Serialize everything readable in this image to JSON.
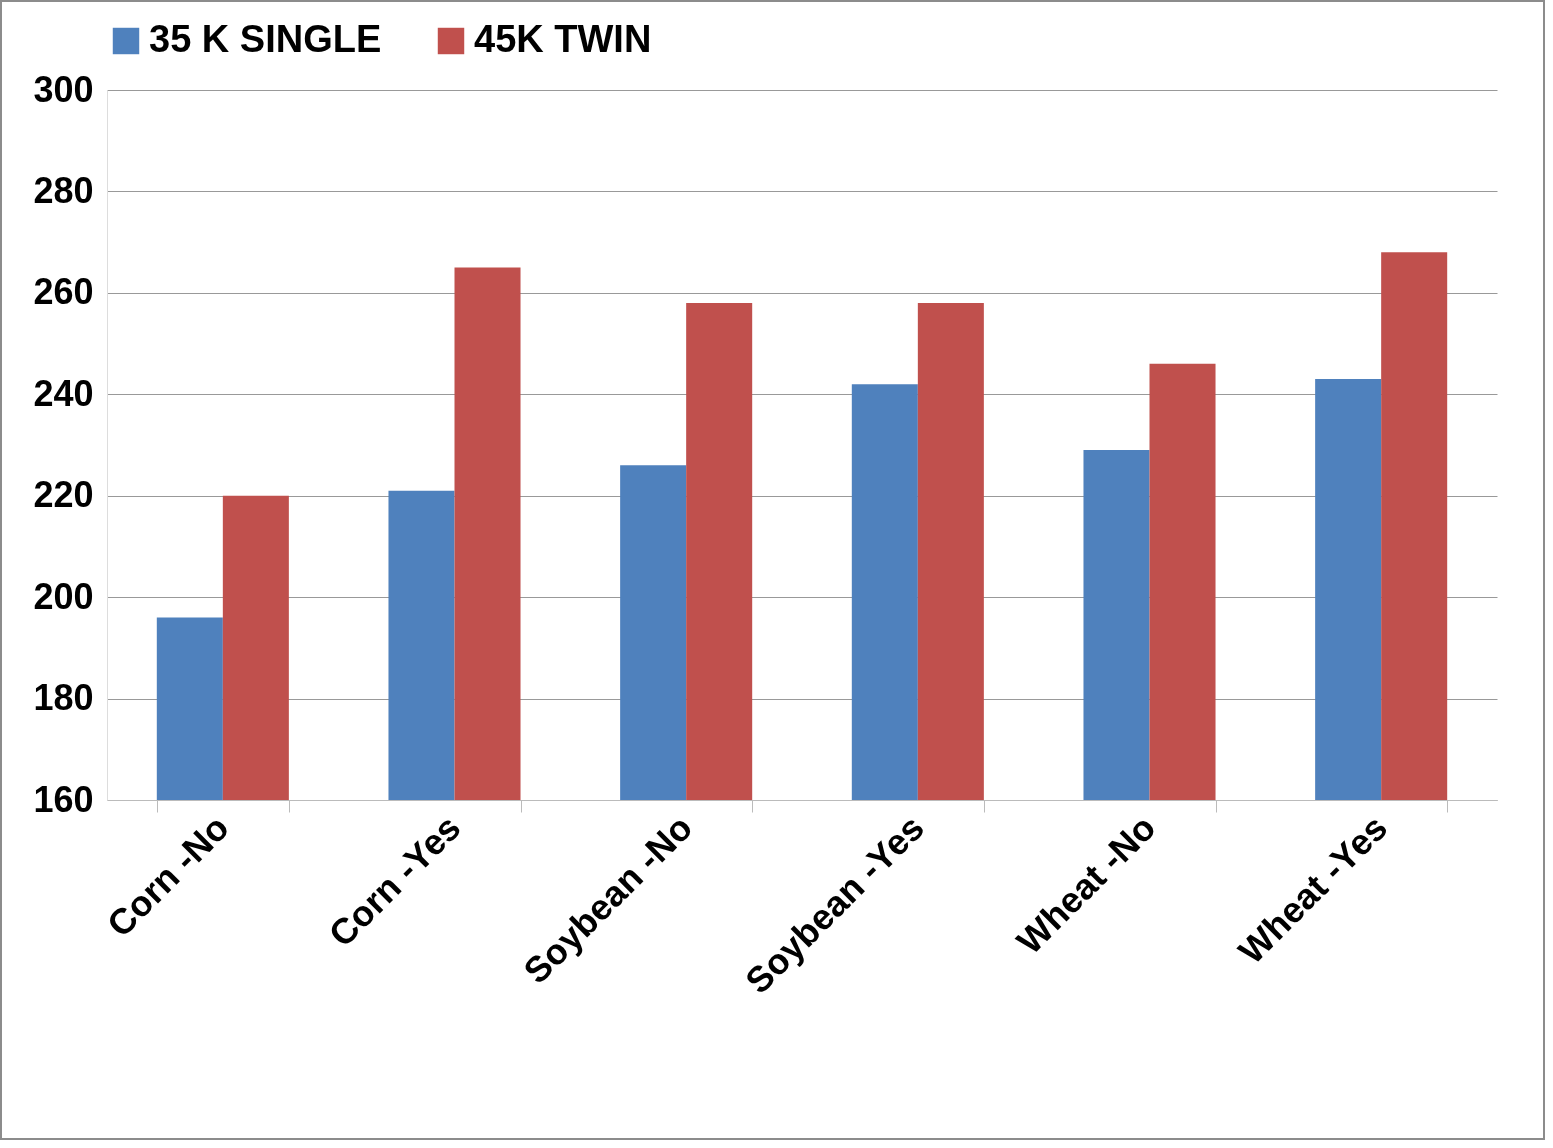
{
  "chart_data": {
    "type": "bar",
    "categories": [
      "Corn -No",
      "Corn -Yes",
      "Soybean -No",
      "Soybean -Yes",
      "Wheat -No",
      "Wheat -Yes"
    ],
    "series": [
      {
        "name": "35 K SINGLE",
        "color": "#4f81bd",
        "values": [
          196,
          221,
          226,
          242,
          229,
          243
        ]
      },
      {
        "name": "45K TWIN",
        "color": "#c0504d",
        "values": [
          220,
          265,
          258,
          258,
          246,
          268
        ]
      }
    ],
    "ylim": [
      160,
      300
    ],
    "yticks": [
      160,
      180,
      200,
      220,
      240,
      260,
      280,
      300
    ],
    "grid": "y",
    "legend": "top"
  }
}
